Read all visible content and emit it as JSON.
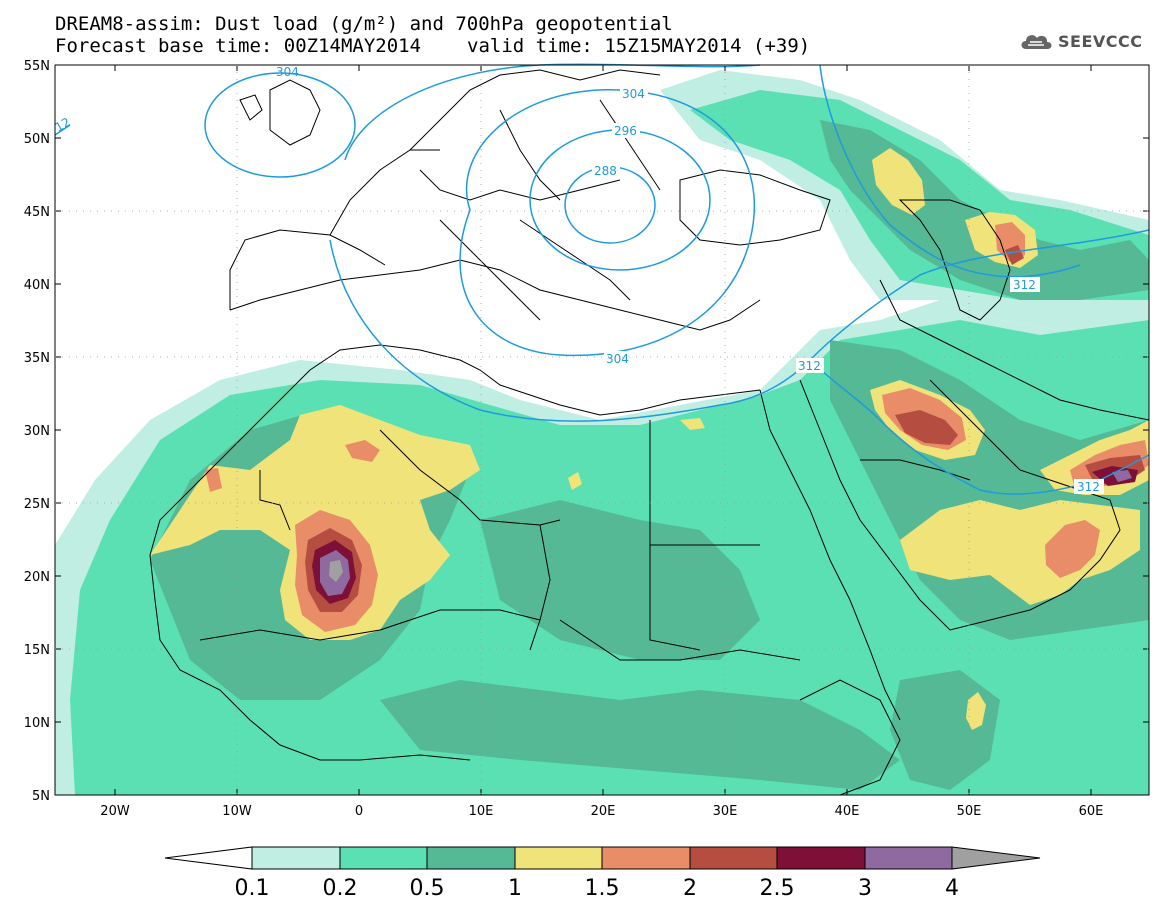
{
  "header": {
    "line1": "DREAM8-assim: Dust load (g/m²) and 700hPa geopotential",
    "line2_base": "Forecast base time: 00Z14MAY2014",
    "line2_valid": "valid time: 15Z15MAY2014 (+39)"
  },
  "logo": {
    "text": "SEEVCCC",
    "icon": "cloud-logo-icon"
  },
  "axes": {
    "lat_labels": [
      "55N",
      "50N",
      "45N",
      "40N",
      "35N",
      "30N",
      "25N",
      "20N",
      "15N",
      "10N",
      "5N"
    ],
    "lon_labels": [
      "20W",
      "10W",
      "0",
      "10E",
      "20E",
      "30E",
      "40E",
      "50E",
      "60E"
    ]
  },
  "contours": {
    "labels": [
      "304",
      "296",
      "288",
      "304",
      "312",
      "312",
      "312",
      "12",
      "304"
    ]
  },
  "colorbar": {
    "ticks": [
      "0.1",
      "0.2",
      "0.5",
      "1",
      "1.5",
      "2",
      "2.5",
      "3",
      "4"
    ],
    "colors": [
      "#c1eee2",
      "#5be0b4",
      "#55b996",
      "#f0e37a",
      "#e98d69",
      "#b54e41",
      "#7e1037",
      "#8e6aa0"
    ],
    "under_color": "#ffffff",
    "over_color": "#a0a0a0"
  },
  "palette": {
    "land": "#ffffff",
    "contour_line": "#1e9bdc",
    "border": "#000000"
  }
}
